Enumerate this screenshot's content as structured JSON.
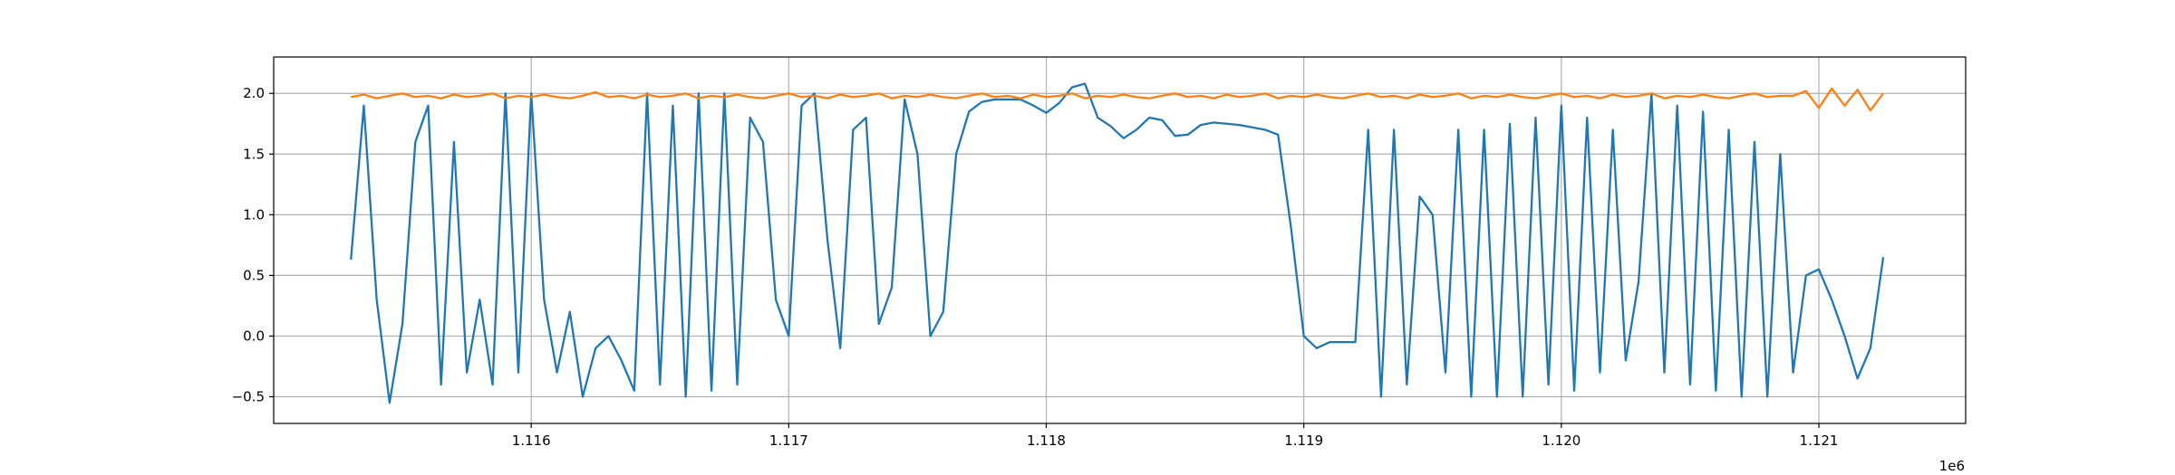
{
  "chart_data": {
    "type": "line",
    "x_offset_label": "1e6",
    "x": [
      1115300,
      1115350,
      1115400,
      1115450,
      1115500,
      1115550,
      1115600,
      1115650,
      1115700,
      1115750,
      1115800,
      1115850,
      1115900,
      1115950,
      1116000,
      1116050,
      1116100,
      1116150,
      1116200,
      1116250,
      1116300,
      1116350,
      1116400,
      1116450,
      1116500,
      1116550,
      1116600,
      1116650,
      1116700,
      1116750,
      1116800,
      1116850,
      1116900,
      1116950,
      1117000,
      1117050,
      1117100,
      1117150,
      1117200,
      1117250,
      1117300,
      1117350,
      1117400,
      1117450,
      1117500,
      1117550,
      1117600,
      1117650,
      1117700,
      1117750,
      1117800,
      1117850,
      1117900,
      1117950,
      1118000,
      1118050,
      1118100,
      1118150,
      1118200,
      1118250,
      1118300,
      1118350,
      1118400,
      1118450,
      1118500,
      1118550,
      1118600,
      1118650,
      1118700,
      1118750,
      1118800,
      1118850,
      1118900,
      1118950,
      1119000,
      1119050,
      1119100,
      1119150,
      1119200,
      1119250,
      1119300,
      1119350,
      1119400,
      1119450,
      1119500,
      1119550,
      1119600,
      1119650,
      1119700,
      1119750,
      1119800,
      1119850,
      1119900,
      1119950,
      1120000,
      1120050,
      1120100,
      1120150,
      1120200,
      1120250,
      1120300,
      1120350,
      1120400,
      1120450,
      1120500,
      1120550,
      1120600,
      1120650,
      1120700,
      1120750,
      1120800,
      1120850,
      1120900,
      1120950,
      1121000,
      1121050,
      1121100,
      1121150,
      1121200,
      1121250
    ],
    "series": [
      {
        "color": "#1f77b4",
        "values": [
          0.63,
          1.9,
          0.3,
          -0.55,
          0.1,
          1.6,
          1.9,
          -0.4,
          1.6,
          -0.3,
          0.3,
          -0.4,
          2.0,
          -0.3,
          2.0,
          0.3,
          -0.3,
          0.2,
          -0.5,
          -0.1,
          0.0,
          -0.2,
          -0.45,
          2.0,
          -0.4,
          1.9,
          -0.5,
          2.0,
          -0.45,
          2.0,
          -0.4,
          1.8,
          1.6,
          0.3,
          0.0,
          1.9,
          2.0,
          0.8,
          -0.1,
          1.7,
          1.8,
          0.1,
          0.4,
          1.95,
          1.5,
          0.0,
          0.2,
          1.5,
          1.85,
          1.93,
          1.95,
          1.95,
          1.95,
          1.9,
          1.84,
          1.92,
          2.05,
          2.08,
          1.8,
          1.73,
          1.63,
          1.7,
          1.8,
          1.78,
          1.65,
          1.66,
          1.74,
          1.76,
          1.75,
          1.74,
          1.72,
          1.7,
          1.66,
          0.9,
          0.0,
          -0.1,
          -0.05,
          -0.05,
          -0.05,
          1.7,
          -0.5,
          1.7,
          -0.4,
          1.15,
          1.0,
          -0.3,
          1.7,
          -0.5,
          1.7,
          -0.5,
          1.75,
          -0.5,
          1.8,
          -0.4,
          1.9,
          -0.45,
          1.8,
          -0.3,
          1.7,
          -0.2,
          0.45,
          2.0,
          -0.3,
          1.9,
          -0.4,
          1.85,
          -0.45,
          1.7,
          -0.5,
          1.6,
          -0.5,
          1.5,
          -0.3,
          0.5,
          0.55,
          0.3,
          0.0,
          -0.35,
          -0.1,
          0.65
        ]
      },
      {
        "color": "#ff7f0e",
        "values": [
          1.97,
          1.99,
          1.96,
          1.98,
          2.0,
          1.97,
          1.98,
          1.96,
          1.99,
          1.97,
          1.98,
          2.0,
          1.96,
          1.98,
          1.97,
          1.99,
          1.97,
          1.96,
          1.98,
          2.01,
          1.97,
          1.98,
          1.96,
          1.99,
          1.97,
          1.98,
          2.0,
          1.96,
          1.98,
          1.97,
          1.99,
          1.97,
          1.96,
          1.98,
          2.0,
          1.97,
          1.98,
          1.96,
          1.99,
          1.97,
          1.98,
          2.0,
          1.96,
          1.98,
          1.97,
          1.99,
          1.97,
          1.96,
          1.98,
          2.0,
          1.97,
          1.98,
          1.96,
          1.99,
          1.97,
          1.98,
          2.0,
          1.96,
          1.98,
          1.97,
          1.99,
          1.97,
          1.96,
          1.98,
          2.0,
          1.97,
          1.98,
          1.96,
          1.99,
          1.97,
          1.98,
          2.0,
          1.96,
          1.98,
          1.97,
          1.99,
          1.97,
          1.96,
          1.98,
          2.0,
          1.97,
          1.98,
          1.96,
          1.99,
          1.97,
          1.98,
          2.0,
          1.96,
          1.98,
          1.97,
          1.99,
          1.97,
          1.96,
          1.98,
          2.0,
          1.97,
          1.98,
          1.96,
          1.99,
          1.97,
          1.98,
          2.0,
          1.96,
          1.98,
          1.97,
          1.99,
          1.97,
          1.96,
          1.98,
          2.0,
          1.97,
          1.98,
          1.98,
          2.02,
          1.88,
          2.04,
          1.9,
          2.03,
          1.86,
          2.0
        ]
      }
    ],
    "xlim": [
      1115000,
      1121570
    ],
    "ylim": [
      -0.72,
      2.3
    ],
    "xticks": [
      {
        "value": 1116000,
        "label": "1.116"
      },
      {
        "value": 1117000,
        "label": "1.117"
      },
      {
        "value": 1118000,
        "label": "1.118"
      },
      {
        "value": 1119000,
        "label": "1.119"
      },
      {
        "value": 1120000,
        "label": "1.120"
      },
      {
        "value": 1121000,
        "label": "1.121"
      }
    ],
    "yticks": [
      {
        "value": -0.5,
        "label": "−0.5"
      },
      {
        "value": 0,
        "label": "0.0"
      },
      {
        "value": 0.5,
        "label": "0.5"
      },
      {
        "value": 1,
        "label": "1.0"
      },
      {
        "value": 1.5,
        "label": "1.5"
      },
      {
        "value": 2,
        "label": "2.0"
      }
    ],
    "grid": true
  }
}
